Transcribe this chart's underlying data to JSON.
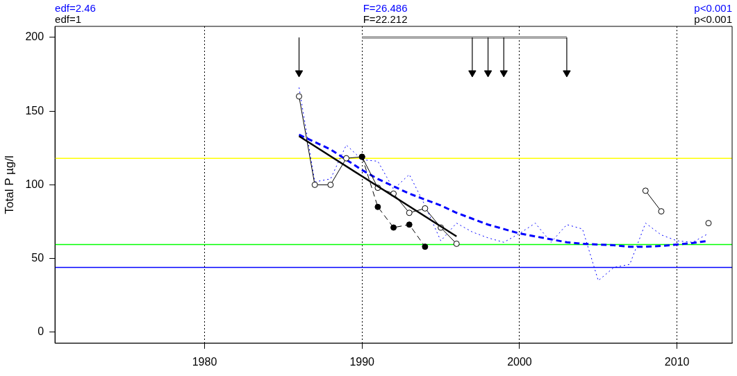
{
  "chart_data": {
    "type": "line",
    "ylabel": "Total P µg/l",
    "xlim": [
      1970.5,
      2013.5
    ],
    "xticks": [
      1980,
      1990,
      2000,
      2010
    ],
    "ylim": [
      -7.5,
      207.5
    ],
    "yticks": [
      0,
      50,
      100,
      150,
      200
    ],
    "grid": "x",
    "legend": false,
    "series": [
      {
        "color": "#0000ff",
        "line_style": "dotted",
        "marker": "none",
        "x": [
          1986,
          1987,
          1988,
          1989,
          1990,
          1991,
          1992,
          1993,
          1994,
          1995,
          1996,
          1997,
          1998,
          1999,
          2000,
          2001,
          2002,
          2003,
          2004,
          2005,
          2006,
          2007,
          2008,
          2009,
          2010,
          2011,
          2012
        ],
        "values": [
          166,
          102,
          104,
          127,
          117,
          116,
          97,
          107,
          86,
          62,
          74,
          68,
          64,
          61,
          67,
          74,
          61,
          73,
          70,
          35,
          44,
          46,
          74,
          66,
          62,
          61,
          67
        ]
      },
      {
        "color": "#0000ff",
        "line_style": "dashed",
        "marker": "none",
        "x": [
          1986,
          1987,
          1988,
          1989,
          1990,
          1991,
          1992,
          1993,
          1994,
          1995,
          1996,
          1997,
          1998,
          1999,
          2000,
          2001,
          2002,
          2003,
          2004,
          2005,
          2006,
          2007,
          2008,
          2009,
          2010,
          2011,
          2012
        ],
        "values": [
          134,
          129,
          124,
          117,
          110,
          104,
          99,
          94,
          90,
          86,
          81,
          77,
          73,
          70,
          67,
          65,
          63,
          61,
          60,
          59.5,
          59,
          58,
          58,
          58.5,
          59.5,
          60.5,
          62
        ]
      },
      {
        "color": "#000000",
        "line_style": "solid",
        "marker": "circle",
        "x": [
          1986,
          1987,
          1988,
          1989,
          1990,
          1991,
          1992,
          1993,
          1994,
          1995,
          1996,
          1997,
          1998,
          1999,
          2000,
          2001,
          2002,
          2003,
          2004,
          2005,
          2006,
          2007,
          2008,
          2009,
          2010,
          2011,
          2012
        ],
        "values": [
          160,
          100,
          100,
          118,
          119,
          98,
          94,
          81,
          84,
          71,
          60,
          null,
          null,
          null,
          null,
          null,
          null,
          null,
          null,
          null,
          null,
          null,
          96,
          82,
          null,
          null,
          74
        ]
      },
      {
        "color": "#000000",
        "line_style": "dashed",
        "marker": "circle",
        "x": [
          1990,
          1991,
          1992,
          1993,
          1994
        ],
        "values": [
          119,
          85,
          71,
          73,
          58
        ]
      },
      {
        "color": "#000000",
        "line_style": "solid",
        "marker": "none",
        "x": [
          1986,
          1996
        ],
        "values": [
          133,
          65
        ]
      },
      {
        "color": "#aaaaaa",
        "line_style": "solid",
        "marker": "none",
        "x": [
          1990,
          2003
        ],
        "values": [
          200,
          200
        ]
      },
      {
        "type": "scatter",
        "color": "#000000",
        "marker": "triangle",
        "x": [
          1986,
          1997,
          1998,
          1999,
          2003
        ],
        "values": [
          176,
          176,
          176,
          176,
          176
        ],
        "errors": [
          [
            176,
            200
          ],
          [
            176,
            200
          ],
          [
            176,
            200
          ],
          [
            176,
            200
          ],
          [
            176,
            200
          ]
        ]
      }
    ],
    "ref_lines": [
      {
        "axis": "y",
        "value": 118,
        "color": "#ffff00"
      },
      {
        "axis": "y",
        "value": 59.5,
        "color": "#00ff00"
      },
      {
        "axis": "y",
        "value": 44,
        "color": "#0000ff"
      }
    ],
    "annotations": [
      "edf=2.46",
      "F=26.486",
      "p<0.001",
      "edf=1",
      "F=22.212",
      "p<0.001"
    ]
  }
}
